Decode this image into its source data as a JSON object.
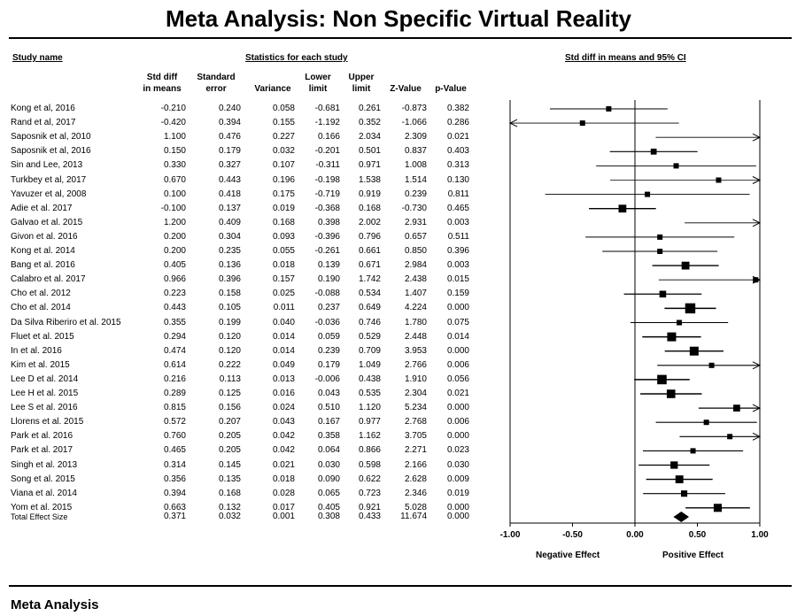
{
  "title": "Meta Analysis: Non Specific Virtual Reality",
  "footer": "Meta Analysis",
  "headers": {
    "study_name": "Study name",
    "statistics": "Statistics for each study",
    "plot": "Std diff in means and 95% CI"
  },
  "columns": [
    "Std diff\nin means",
    "Standard\nerror",
    "Variance",
    "Lower\nlimit",
    "Upper\nlimit",
    "Z-Value",
    "p-Value"
  ],
  "axis": {
    "ticks": [
      "-1.00",
      "-0.50",
      "0.00",
      "0.50",
      "1.00"
    ],
    "left_label": "Negative Effect",
    "right_label": "Positive Effect"
  },
  "chart_data": {
    "type": "forest",
    "xlim": [
      -1,
      1
    ],
    "rows": [
      {
        "study": "Kong et al, 2016",
        "smd": "-0.210",
        "se": "0.240",
        "var": "0.058",
        "lower": "-0.681",
        "upper": "0.261",
        "z": "-0.873",
        "p": "0.382"
      },
      {
        "study": "Rand et al, 2017",
        "smd": "-0.420",
        "se": "0.394",
        "var": "0.155",
        "lower": "-1.192",
        "upper": "0.352",
        "z": "-1.066",
        "p": "0.286"
      },
      {
        "study": "Saposnik et al, 2010",
        "smd": "1.100",
        "se": "0.476",
        "var": "0.227",
        "lower": "0.166",
        "upper": "2.034",
        "z": "2.309",
        "p": "0.021"
      },
      {
        "study": "Saposnik et al, 2016",
        "smd": "0.150",
        "se": "0.179",
        "var": "0.032",
        "lower": "-0.201",
        "upper": "0.501",
        "z": "0.837",
        "p": "0.403"
      },
      {
        "study": "Sin and Lee, 2013",
        "smd": "0.330",
        "se": "0.327",
        "var": "0.107",
        "lower": "-0.311",
        "upper": "0.971",
        "z": "1.008",
        "p": "0.313"
      },
      {
        "study": "Turkbey et al, 2017",
        "smd": "0.670",
        "se": "0.443",
        "var": "0.196",
        "lower": "-0.198",
        "upper": "1.538",
        "z": "1.514",
        "p": "0.130"
      },
      {
        "study": "Yavuzer et al, 2008",
        "smd": "0.100",
        "se": "0.418",
        "var": "0.175",
        "lower": "-0.719",
        "upper": "0.919",
        "z": "0.239",
        "p": "0.811"
      },
      {
        "study": "Adie et al. 2017",
        "smd": "-0.100",
        "se": "0.137",
        "var": "0.019",
        "lower": "-0.368",
        "upper": "0.168",
        "z": "-0.730",
        "p": "0.465"
      },
      {
        "study": "Galvao et al. 2015",
        "smd": "1.200",
        "se": "0.409",
        "var": "0.168",
        "lower": "0.398",
        "upper": "2.002",
        "z": "2.931",
        "p": "0.003"
      },
      {
        "study": "Givon et al. 2016",
        "smd": "0.200",
        "se": "0.304",
        "var": "0.093",
        "lower": "-0.396",
        "upper": "0.796",
        "z": "0.657",
        "p": "0.511"
      },
      {
        "study": "Kong et al. 2014",
        "smd": "0.200",
        "se": "0.235",
        "var": "0.055",
        "lower": "-0.261",
        "upper": "0.661",
        "z": "0.850",
        "p": "0.396"
      },
      {
        "study": "Bang et al. 2016",
        "smd": "0.405",
        "se": "0.136",
        "var": "0.018",
        "lower": "0.139",
        "upper": "0.671",
        "z": "2.984",
        "p": "0.003"
      },
      {
        "study": "Calabro et al. 2017",
        "smd": "0.966",
        "se": "0.396",
        "var": "0.157",
        "lower": "0.190",
        "upper": "1.742",
        "z": "2.438",
        "p": "0.015"
      },
      {
        "study": "Cho et al. 2012",
        "smd": "0.223",
        "se": "0.158",
        "var": "0.025",
        "lower": "-0.088",
        "upper": "0.534",
        "z": "1.407",
        "p": "0.159"
      },
      {
        "study": "Cho et al. 2014",
        "smd": "0.443",
        "se": "0.105",
        "var": "0.011",
        "lower": "0.237",
        "upper": "0.649",
        "z": "4.224",
        "p": "0.000"
      },
      {
        "study": "Da Silva Riberiro et al. 2015",
        "smd": "0.355",
        "se": "0.199",
        "var": "0.040",
        "lower": "-0.036",
        "upper": "0.746",
        "z": "1.780",
        "p": "0.075"
      },
      {
        "study": "Fluet et al. 2015",
        "smd": "0.294",
        "se": "0.120",
        "var": "0.014",
        "lower": "0.059",
        "upper": "0.529",
        "z": "2.448",
        "p": "0.014"
      },
      {
        "study": "In et al. 2016",
        "smd": "0.474",
        "se": "0.120",
        "var": "0.014",
        "lower": "0.239",
        "upper": "0.709",
        "z": "3.953",
        "p": "0.000"
      },
      {
        "study": "Kim et al. 2015",
        "smd": "0.614",
        "se": "0.222",
        "var": "0.049",
        "lower": "0.179",
        "upper": "1.049",
        "z": "2.766",
        "p": "0.006"
      },
      {
        "study": "Lee D et al. 2014",
        "smd": "0.216",
        "se": "0.113",
        "var": "0.013",
        "lower": "-0.006",
        "upper": "0.438",
        "z": "1.910",
        "p": "0.056"
      },
      {
        "study": "Lee H et al. 2015",
        "smd": "0.289",
        "se": "0.125",
        "var": "0.016",
        "lower": "0.043",
        "upper": "0.535",
        "z": "2.304",
        "p": "0.021"
      },
      {
        "study": "Lee S et al. 2016",
        "smd": "0.815",
        "se": "0.156",
        "var": "0.024",
        "lower": "0.510",
        "upper": "1.120",
        "z": "5.234",
        "p": "0.000"
      },
      {
        "study": "Llorens et al. 2015",
        "smd": "0.572",
        "se": "0.207",
        "var": "0.043",
        "lower": "0.167",
        "upper": "0.977",
        "z": "2.768",
        "p": "0.006"
      },
      {
        "study": "Park et al. 2016",
        "smd": "0.760",
        "se": "0.205",
        "var": "0.042",
        "lower": "0.358",
        "upper": "1.162",
        "z": "3.705",
        "p": "0.000"
      },
      {
        "study": "Park et al. 2017",
        "smd": "0.465",
        "se": "0.205",
        "var": "0.042",
        "lower": "0.064",
        "upper": "0.866",
        "z": "2.271",
        "p": "0.023"
      },
      {
        "study": "Singh et al. 2013",
        "smd": "0.314",
        "se": "0.145",
        "var": "0.021",
        "lower": "0.030",
        "upper": "0.598",
        "z": "2.166",
        "p": "0.030"
      },
      {
        "study": "Song et al. 2015",
        "smd": "0.356",
        "se": "0.135",
        "var": "0.018",
        "lower": "0.090",
        "upper": "0.622",
        "z": "2.628",
        "p": "0.009"
      },
      {
        "study": "Viana et al. 2014",
        "smd": "0.394",
        "se": "0.168",
        "var": "0.028",
        "lower": "0.065",
        "upper": "0.723",
        "z": "2.346",
        "p": "0.019"
      },
      {
        "study": "Yom et al. 2015",
        "smd": "0.663",
        "se": "0.132",
        "var": "0.017",
        "lower": "0.405",
        "upper": "0.921",
        "z": "5.028",
        "p": "0.000"
      }
    ],
    "total": {
      "study": "Total Effect Size",
      "smd": "0.371",
      "se": "0.032",
      "var": "0.001",
      "lower": "0.308",
      "upper": "0.433",
      "z": "11.674",
      "p": "0.000"
    }
  }
}
